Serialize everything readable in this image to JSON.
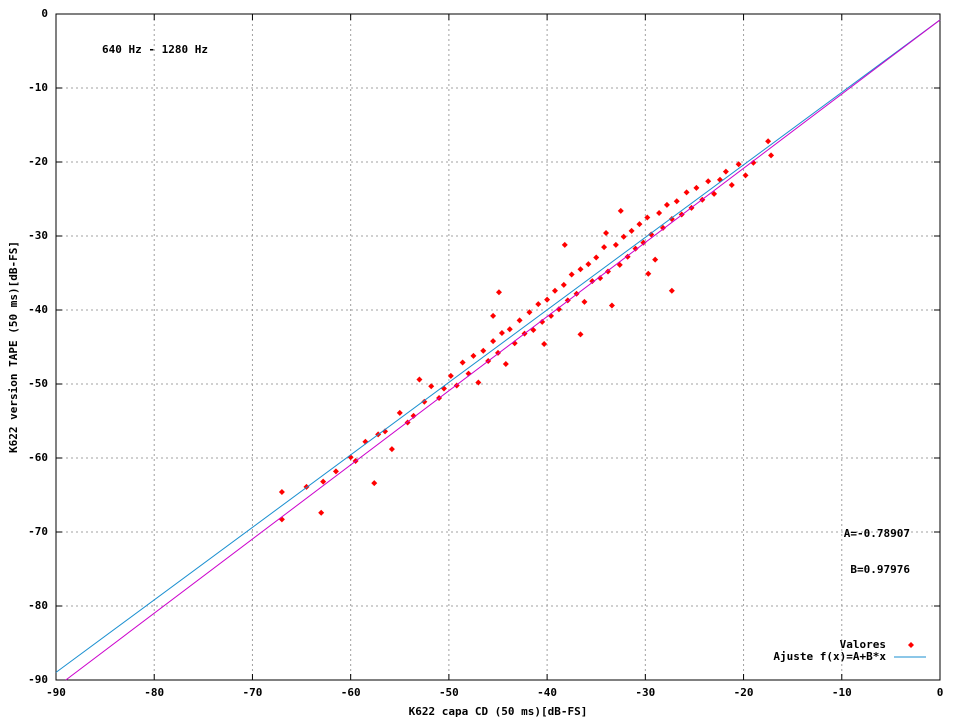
{
  "chart_data": {
    "type": "scatter",
    "xlabel": "K622 capa CD (50 ms)[dB-FS]",
    "ylabel": "K622 version TAPE (50 ms)[dB-FS]",
    "annotations": [
      "640 Hz - 1280 Hz",
      "A=-0.78907",
      "B=0.97976"
    ],
    "xlim": [
      -90,
      0
    ],
    "ylim": [
      -90,
      0
    ],
    "xticks": [
      -90,
      -80,
      -70,
      -60,
      -50,
      -40,
      -30,
      -20,
      -10,
      0
    ],
    "yticks": [
      -90,
      -80,
      -70,
      -60,
      -50,
      -40,
      -30,
      -20,
      -10,
      0
    ],
    "grid": true,
    "legend": "bottom right",
    "series": [
      {
        "name": "Valores",
        "type": "scatter",
        "color": "#ff0000",
        "x": [
          -67,
          -67,
          -64.5,
          -63,
          -62.8,
          -61.5,
          -60,
          -59.5,
          -58.5,
          -57.6,
          -57.2,
          -56.5,
          -55.8,
          -55,
          -54.2,
          -53.6,
          -53,
          -52.5,
          -51.8,
          -51,
          -50.5,
          -49.8,
          -49.2,
          -48.6,
          -48,
          -47.5,
          -47,
          -46.5,
          -46,
          -45.5,
          -45,
          -44.6,
          -44.2,
          -43.8,
          -43.3,
          -42.8,
          -42.3,
          -41.8,
          -41.4,
          -40.9,
          -40.5,
          -40,
          -39.6,
          -39.2,
          -38.8,
          -38.3,
          -37.9,
          -37.5,
          -37,
          -36.6,
          -36.2,
          -35.8,
          -35.4,
          -35,
          -34.6,
          -34.2,
          -33.8,
          -33.4,
          -33,
          -32.6,
          -32.2,
          -31.8,
          -31.4,
          -31,
          -30.6,
          -30.2,
          -29.8,
          -29.4,
          -29,
          -28.6,
          -28.2,
          -27.8,
          -27.3,
          -26.8,
          -26.3,
          -25.8,
          -25.3,
          -24.8,
          -24.2,
          -23.6,
          -23,
          -22.4,
          -21.8,
          -21.2,
          -20.5,
          -19.8,
          -19,
          -17.5,
          -17.2,
          -32.5,
          -38.2,
          -45.5,
          -40.3,
          -44.9,
          -29.7,
          -27.3,
          -34,
          -36.6
        ],
        "y": [
          -64.6,
          -68.3,
          -63.9,
          -67.4,
          -63.2,
          -61.8,
          -59.9,
          -60.4,
          -57.8,
          -63.4,
          -56.8,
          -56.4,
          -58.8,
          -53.9,
          -55.2,
          -54.3,
          -49.4,
          -52.4,
          -50.3,
          -51.9,
          -50.6,
          -48.9,
          -50.2,
          -47.1,
          -48.6,
          -46.2,
          -49.8,
          -45.5,
          -46.9,
          -44.2,
          -45.8,
          -43.1,
          -47.3,
          -42.6,
          -44.5,
          -41.4,
          -43.2,
          -40.3,
          -42.7,
          -39.2,
          -41.6,
          -38.6,
          -40.8,
          -37.4,
          -39.9,
          -36.6,
          -38.7,
          -35.2,
          -37.8,
          -34.5,
          -38.9,
          -33.8,
          -36.1,
          -32.9,
          -35.7,
          -31.5,
          -34.8,
          -39.4,
          -31.2,
          -33.9,
          -30.1,
          -32.8,
          -29.3,
          -31.7,
          -28.4,
          -30.9,
          -27.5,
          -29.8,
          -33.2,
          -26.9,
          -28.9,
          -25.8,
          -27.7,
          -25.3,
          -27.1,
          -24.1,
          -26.2,
          -23.5,
          -25.1,
          -22.6,
          -24.3,
          -22.4,
          -21.3,
          -23.1,
          -20.3,
          -21.8,
          -20.1,
          -17.2,
          -19.1,
          -26.6,
          -31.2,
          -40.8,
          -44.6,
          -37.6,
          -35.1,
          -37.4,
          -29.6,
          -43.3
        ]
      },
      {
        "name": "Ajuste f(x)=A+B*x",
        "type": "line",
        "color": "#1a8fd0",
        "x": [
          -90,
          0
        ],
        "y": [
          -88.97,
          -0.79
        ]
      },
      {
        "type": "line",
        "color": "#cc00cc",
        "x": [
          -89,
          0
        ],
        "y": [
          -90,
          -0.8
        ]
      }
    ]
  }
}
